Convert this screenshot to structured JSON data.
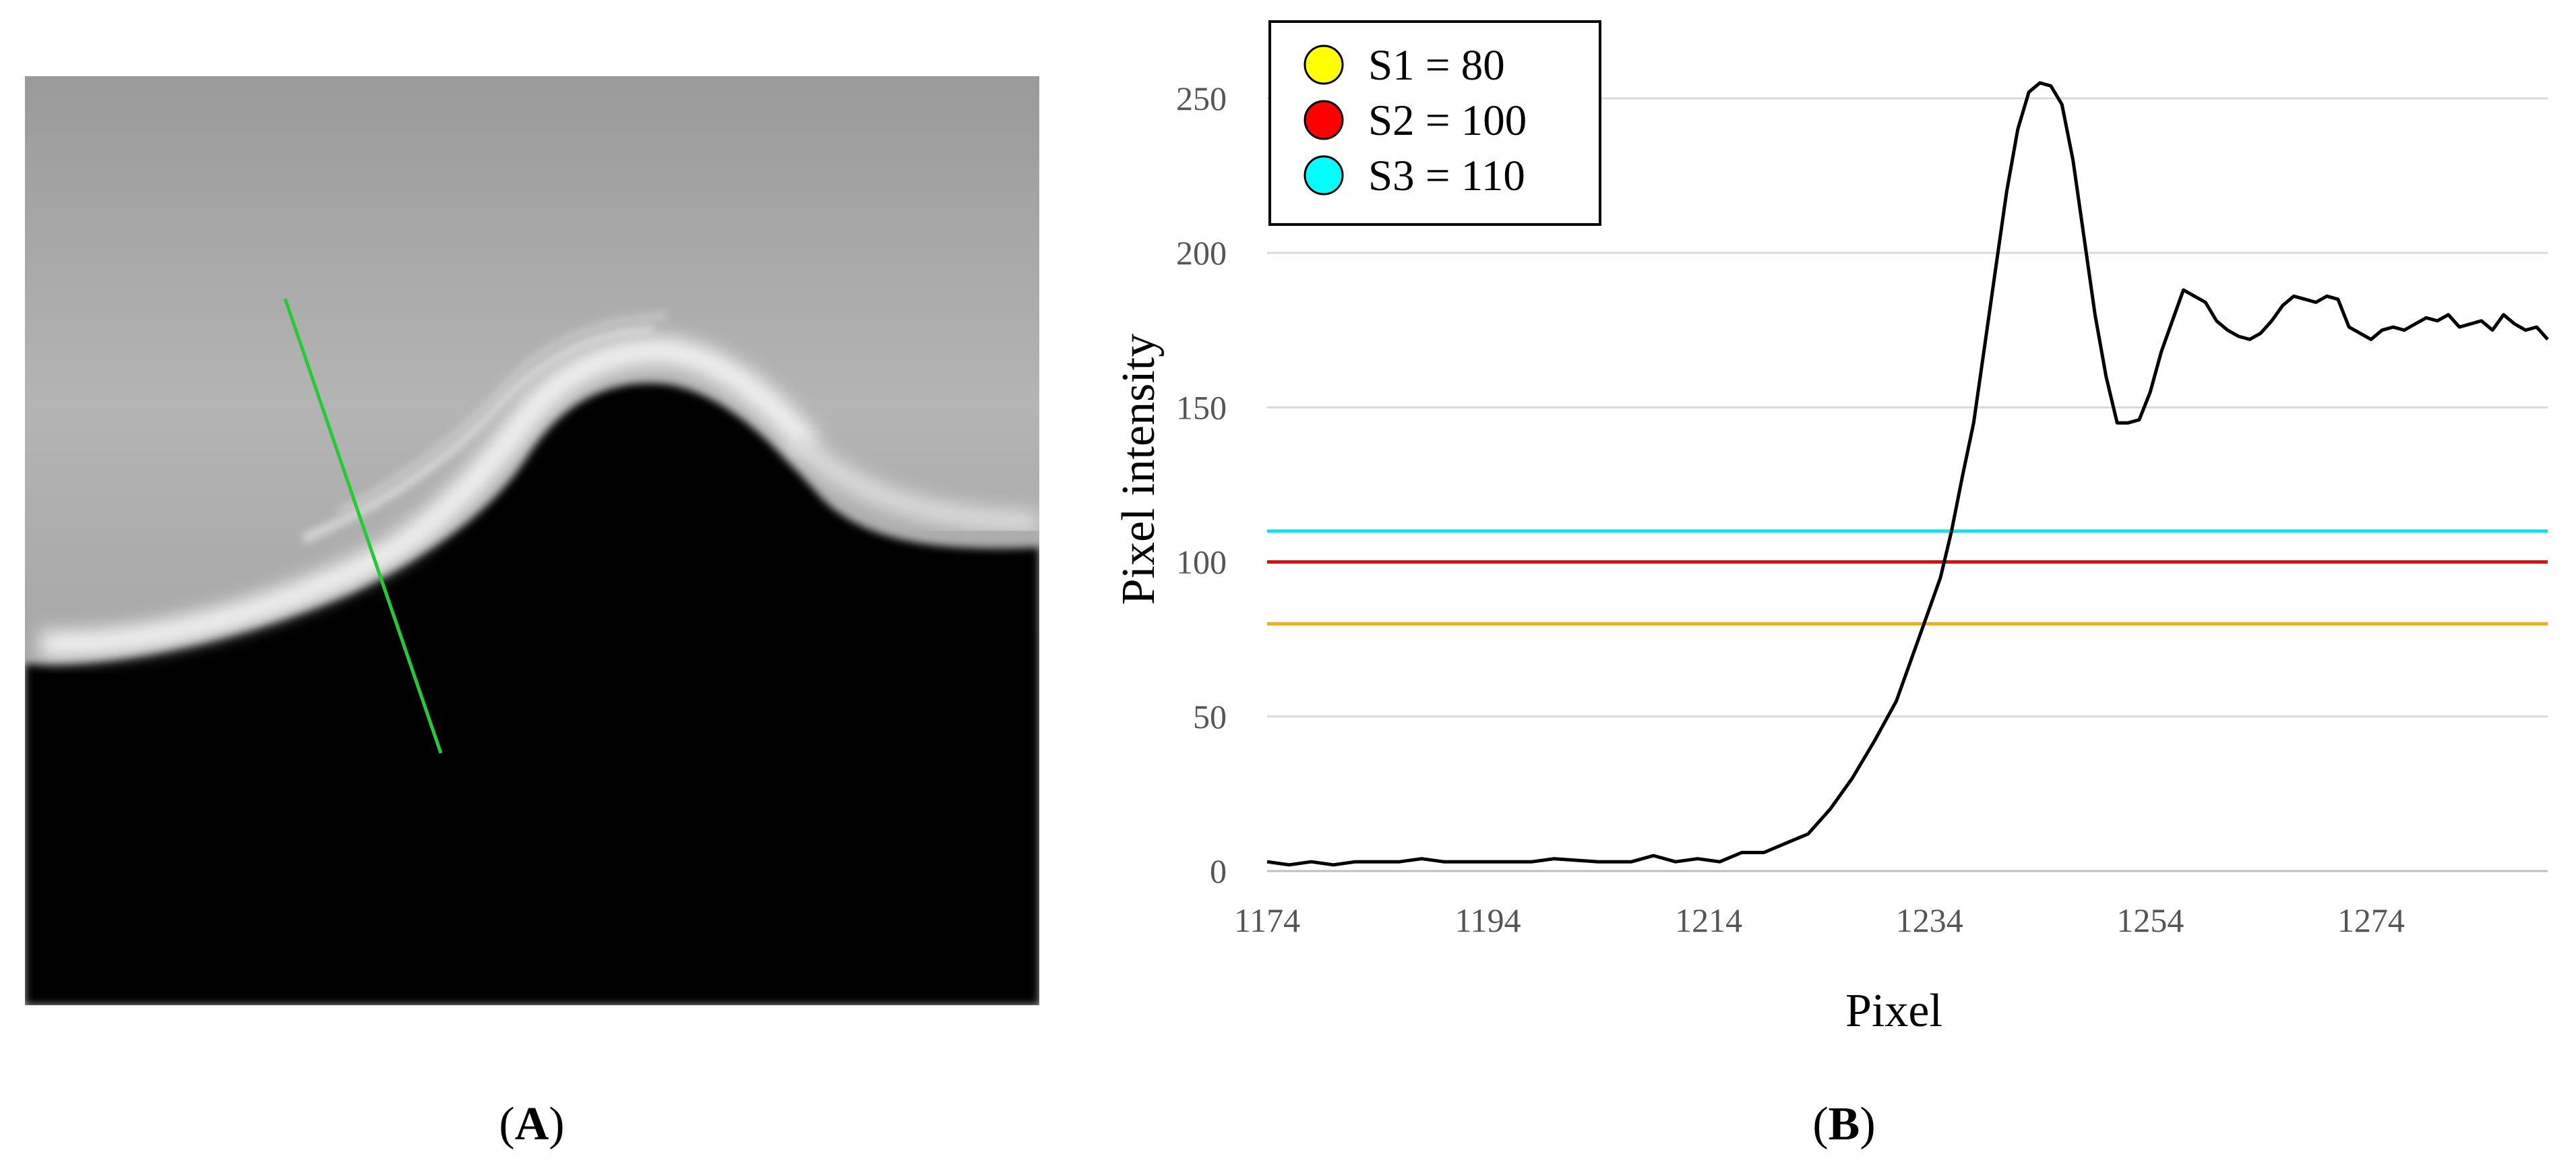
{
  "panels": {
    "a_label": "A",
    "b_label": "B"
  },
  "image_panel": {
    "description_icon": "grayscale-micrograph-image",
    "line_color": "#22cc33"
  },
  "chart_data": {
    "type": "line",
    "title": "",
    "xlabel": "Pixel",
    "ylabel": "Pixel intensity",
    "xlim": [
      1174,
      1290
    ],
    "ylim": [
      0,
      260
    ],
    "x_ticks": [
      1174,
      1194,
      1214,
      1234,
      1254,
      1274
    ],
    "y_ticks": [
      0,
      50,
      100,
      150,
      200,
      250
    ],
    "grid": "horizontal",
    "legend": {
      "placement": "top-left",
      "entries": [
        {
          "label": "S1 = 80",
          "color": "#ffff00"
        },
        {
          "label": "S2 = 100",
          "color": "#ff0000"
        },
        {
          "label": "S3 = 110",
          "color": "#00ffff"
        }
      ]
    },
    "thresholds": [
      {
        "name": "S1",
        "value": 80,
        "color": "#f0b400"
      },
      {
        "name": "S2",
        "value": 100,
        "color": "#ff0000"
      },
      {
        "name": "S3",
        "value": 110,
        "color": "#00e8f0"
      }
    ],
    "series": [
      {
        "color": "#000000",
        "points": [
          [
            1174,
            3
          ],
          [
            1176,
            2
          ],
          [
            1178,
            3
          ],
          [
            1180,
            2
          ],
          [
            1182,
            3
          ],
          [
            1184,
            3
          ],
          [
            1186,
            3
          ],
          [
            1188,
            4
          ],
          [
            1190,
            3
          ],
          [
            1194,
            3
          ],
          [
            1198,
            3
          ],
          [
            1200,
            4
          ],
          [
            1204,
            3
          ],
          [
            1207,
            3
          ],
          [
            1209,
            5
          ],
          [
            1211,
            3
          ],
          [
            1213,
            4
          ],
          [
            1215,
            3
          ],
          [
            1217,
            6
          ],
          [
            1219,
            6
          ],
          [
            1221,
            9
          ],
          [
            1223,
            12
          ],
          [
            1225,
            20
          ],
          [
            1227,
            30
          ],
          [
            1229,
            42
          ],
          [
            1231,
            55
          ],
          [
            1232,
            65
          ],
          [
            1233,
            75
          ],
          [
            1234,
            85
          ],
          [
            1235,
            95
          ],
          [
            1236,
            110
          ],
          [
            1237,
            128
          ],
          [
            1238,
            145
          ],
          [
            1239,
            170
          ],
          [
            1240,
            195
          ],
          [
            1241,
            220
          ],
          [
            1242,
            240
          ],
          [
            1243,
            252
          ],
          [
            1244,
            255
          ],
          [
            1245,
            254
          ],
          [
            1246,
            248
          ],
          [
            1247,
            230
          ],
          [
            1248,
            205
          ],
          [
            1249,
            180
          ],
          [
            1250,
            160
          ],
          [
            1251,
            145
          ],
          [
            1252,
            145
          ],
          [
            1253,
            146
          ],
          [
            1254,
            155
          ],
          [
            1255,
            168
          ],
          [
            1256,
            178
          ],
          [
            1257,
            188
          ],
          [
            1258,
            186
          ],
          [
            1259,
            184
          ],
          [
            1260,
            178
          ],
          [
            1261,
            175
          ],
          [
            1262,
            173
          ],
          [
            1263,
            172
          ],
          [
            1264,
            174
          ],
          [
            1265,
            178
          ],
          [
            1266,
            183
          ],
          [
            1267,
            186
          ],
          [
            1268,
            185
          ],
          [
            1269,
            184
          ],
          [
            1270,
            186
          ],
          [
            1271,
            185
          ],
          [
            1272,
            176
          ],
          [
            1273,
            174
          ],
          [
            1274,
            172
          ],
          [
            1275,
            175
          ],
          [
            1276,
            176
          ],
          [
            1277,
            175
          ],
          [
            1278,
            177
          ],
          [
            1279,
            179
          ],
          [
            1280,
            178
          ],
          [
            1281,
            180
          ],
          [
            1282,
            176
          ],
          [
            1283,
            177
          ],
          [
            1284,
            178
          ],
          [
            1285,
            175
          ],
          [
            1286,
            180
          ],
          [
            1287,
            177
          ],
          [
            1288,
            175
          ],
          [
            1289,
            176
          ],
          [
            1290,
            172
          ]
        ]
      }
    ]
  }
}
